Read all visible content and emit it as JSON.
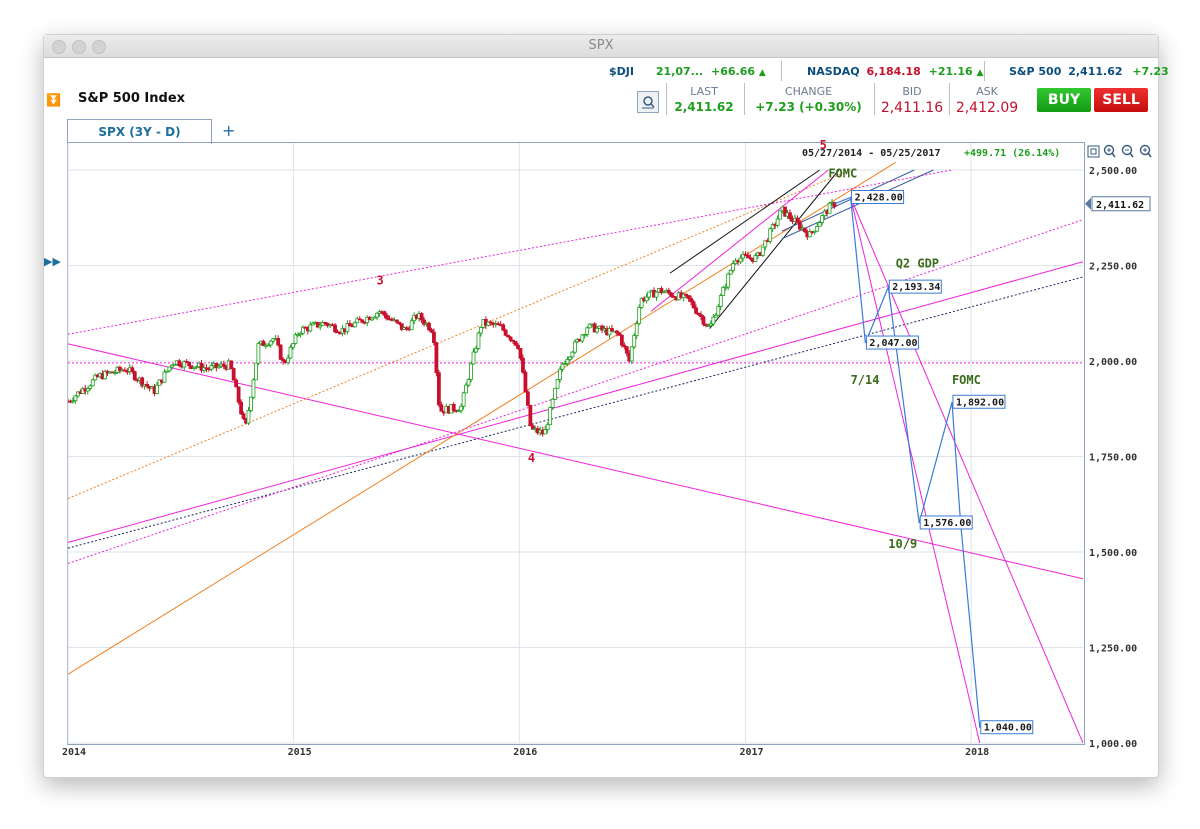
{
  "window": {
    "title": "SPX"
  },
  "tickers": [
    {
      "symbol": "$DJI",
      "value": "21,07...",
      "change": "+66.66"
    },
    {
      "symbol": "NASDAQ",
      "value": "6,184.18",
      "change": "+21.16"
    },
    {
      "symbol": "S&P 500",
      "value": "2,411.62",
      "change": "+7.23"
    }
  ],
  "instrument": {
    "name": "S&P 500 Index"
  },
  "quote": {
    "last_label": "LAST",
    "last": "2,411.62",
    "change_label": "CHANGE",
    "change": "+7.23 (+0.30%)",
    "bid_label": "BID",
    "bid": "2,411.16",
    "ask_label": "ASK",
    "ask": "2,412.09"
  },
  "buttons": {
    "buy": "BUY",
    "sell": "SELL"
  },
  "tabs": [
    {
      "label": "SPX (3Y - D)"
    }
  ],
  "add_tab": "+",
  "colors": {
    "up": "#1e9e1e",
    "down": "#c8102e",
    "pink": "#ee22dd",
    "blue": "#3a7bd5",
    "orange": "#f08020",
    "brand": "#0b4e7e"
  },
  "chart_data": {
    "type": "candlestick",
    "range_label": "05/27/2014 - 05/25/2017",
    "range_change": "+499.71 (26.14%)",
    "price_tag": "2,411.62",
    "ylim": [
      1000,
      2500
    ],
    "y_ticks": [
      "2,500.00",
      "2,250.00",
      "2,000.00",
      "1,750.00",
      "1,500.00",
      "1,250.00",
      "1,000.00"
    ],
    "x_ticks": [
      "2014",
      "2015",
      "2016",
      "2017",
      "2018"
    ],
    "x_range": [
      "2014-01-01",
      "2018-07-01"
    ],
    "series": [
      {
        "name": "SPX",
        "points": [
          [
            "2014-01-01",
            1895
          ],
          [
            "2014-02-20",
            1960
          ],
          [
            "2014-04-05",
            1980
          ],
          [
            "2014-05-20",
            1920
          ],
          [
            "2014-06-20",
            2000
          ],
          [
            "2014-08-15",
            1980
          ],
          [
            "2014-09-20",
            1990
          ],
          [
            "2014-10-15",
            1820
          ],
          [
            "2014-11-05",
            2040
          ],
          [
            "2014-12-01",
            2060
          ],
          [
            "2014-12-16",
            1990
          ],
          [
            "2015-01-10",
            2080
          ],
          [
            "2015-02-20",
            2100
          ],
          [
            "2015-03-20",
            2080
          ],
          [
            "2015-05-20",
            2130
          ],
          [
            "2015-07-01",
            2080
          ],
          [
            "2015-07-20",
            2120
          ],
          [
            "2015-08-15",
            2080
          ],
          [
            "2015-08-25",
            1870
          ],
          [
            "2015-09-29",
            1880
          ],
          [
            "2015-11-01",
            2100
          ],
          [
            "2015-12-01",
            2090
          ],
          [
            "2015-12-31",
            2040
          ],
          [
            "2016-01-20",
            1820
          ],
          [
            "2016-02-11",
            1810
          ],
          [
            "2016-03-10",
            1990
          ],
          [
            "2016-04-20",
            2090
          ],
          [
            "2016-06-10",
            2070
          ],
          [
            "2016-06-27",
            2000
          ],
          [
            "2016-07-15",
            2160
          ],
          [
            "2016-08-15",
            2185
          ],
          [
            "2016-10-01",
            2160
          ],
          [
            "2016-11-04",
            2085
          ],
          [
            "2016-12-15",
            2270
          ],
          [
            "2017-01-20",
            2270
          ],
          [
            "2017-03-01",
            2395
          ],
          [
            "2017-04-15",
            2330
          ],
          [
            "2017-05-15",
            2400
          ],
          [
            "2017-05-25",
            2411.62
          ]
        ]
      },
      {
        "name": "Projection",
        "points": [
          [
            "2017-06-20",
            2428
          ],
          [
            "2017-07-14",
            2047
          ],
          [
            "2017-08-20",
            2193.34
          ],
          [
            "2017-10-09",
            1576
          ],
          [
            "2017-12-01",
            1892
          ],
          [
            "2017-12-15",
            1576
          ],
          [
            "2018-01-15",
            1040
          ]
        ]
      }
    ],
    "price_labels": [
      {
        "x": "2017-06-20",
        "y": 2428,
        "text": "2,428.00"
      },
      {
        "x": "2017-08-20",
        "y": 2193.34,
        "text": "2,193.34"
      },
      {
        "x": "2017-07-14",
        "y": 2047,
        "text": "2,047.00"
      },
      {
        "x": "2017-12-01",
        "y": 1892,
        "text": "1,892.00"
      },
      {
        "x": "2017-10-09",
        "y": 1576,
        "text": "1,576.00"
      },
      {
        "x": "2018-01-15",
        "y": 1040,
        "text": "1,040.00"
      }
    ],
    "annotations": [
      {
        "text": "5",
        "x": "2017-05-01",
        "y": 2555,
        "color": "#c8102e"
      },
      {
        "text": "FOMC",
        "x": "2017-05-15",
        "y": 2480,
        "color": "#3a6b1a"
      },
      {
        "text": "3",
        "x": "2015-05-15",
        "y": 2200,
        "color": "#c8102e"
      },
      {
        "text": "4",
        "x": "2016-01-15",
        "y": 1735,
        "color": "#c8102e"
      },
      {
        "text": "Q2 GDP",
        "x": "2017-09-01",
        "y": 2245,
        "color": "#3a6b1a"
      },
      {
        "text": "7/14",
        "x": "2017-06-20",
        "y": 1940,
        "color": "#3a6b1a"
      },
      {
        "text": "FOMC",
        "x": "2017-12-01",
        "y": 1940,
        "color": "#3a6b1a"
      },
      {
        "text": "10/9",
        "x": "2017-08-20",
        "y": 1510,
        "color": "#3a6b1a"
      }
    ],
    "trendlines": [
      {
        "from": [
          "2014-01-01",
          1525
        ],
        "to": [
          "2018-07-01",
          2260
        ],
        "color": "#ee22dd",
        "style": "solid"
      },
      {
        "from": [
          "2014-01-01",
          1510
        ],
        "to": [
          "2018-07-01",
          2220
        ],
        "color": "#1a2a5e",
        "style": "dotted"
      },
      {
        "from": [
          "2014-01-01",
          2045
        ],
        "to": [
          "2018-07-01",
          1430
        ],
        "color": "#ee22dd",
        "style": "solid"
      },
      {
        "from": [
          "2014-01-01",
          1180
        ],
        "to": [
          "2017-09-01",
          2520
        ],
        "color": "#f08020",
        "style": "solid"
      },
      {
        "from": [
          "2014-01-01",
          1640
        ],
        "to": [
          "2017-06-20",
          2500
        ],
        "color": "#f08020",
        "style": "dotted"
      },
      {
        "from": [
          "2014-01-01",
          2070
        ],
        "to": [
          "2017-12-01",
          2500
        ],
        "color": "#ee22dd",
        "style": "dotted"
      },
      {
        "from": [
          "2014-01-01",
          1470
        ],
        "to": [
          "2018-07-01",
          2370
        ],
        "color": "#ee22dd",
        "style": "dotted"
      },
      {
        "from": [
          "2014-01-01",
          1995
        ],
        "to": [
          "2018-07-01",
          1995
        ],
        "color": "#ee22dd",
        "style": "dotted"
      },
      {
        "from": [
          "2017-06-20",
          2428
        ],
        "to": [
          "2018-07-01",
          1000
        ],
        "color": "#ee22dd",
        "style": "solid"
      },
      {
        "from": [
          "2017-06-20",
          2428
        ],
        "to": [
          "2018-01-15",
          1000
        ],
        "color": "#ee22dd",
        "style": "solid"
      },
      {
        "from": [
          "2016-08-01",
          2130
        ],
        "to": [
          "2017-05-15",
          2500
        ],
        "color": "#ee22dd",
        "style": "solid"
      },
      {
        "from": [
          "2016-11-04",
          2085
        ],
        "to": [
          "2017-06-01",
          2500
        ],
        "color": "#111111",
        "style": "solid"
      },
      {
        "from": [
          "2016-09-01",
          2230
        ],
        "to": [
          "2017-05-01",
          2500
        ],
        "color": "#111111",
        "style": "solid"
      },
      {
        "from": [
          "2017-03-01",
          2320
        ],
        "to": [
          "2017-11-01",
          2500
        ],
        "color": "#3a5ba5",
        "style": "solid"
      },
      {
        "from": [
          "2017-03-01",
          2340
        ],
        "to": [
          "2017-10-01",
          2500
        ],
        "color": "#3a5ba5",
        "style": "solid"
      }
    ]
  }
}
